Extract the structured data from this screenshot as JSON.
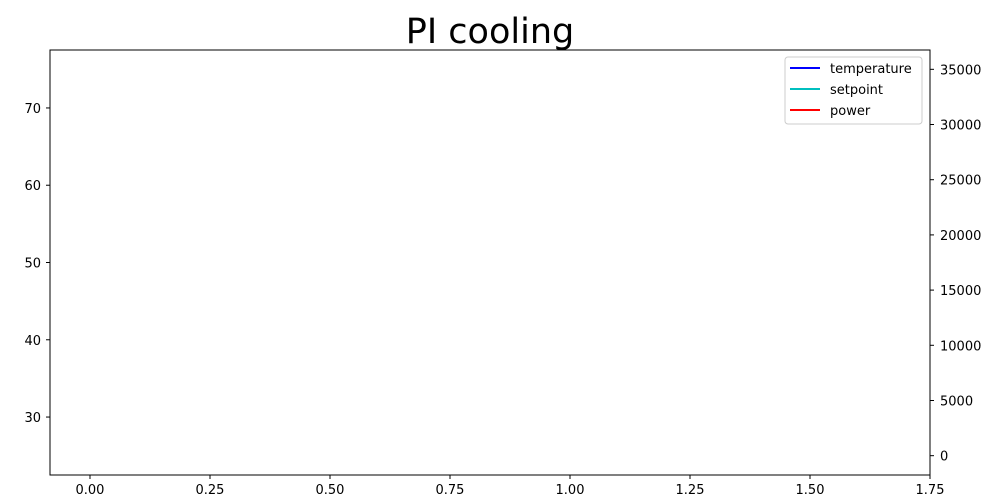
{
  "chart_data": {
    "type": "line",
    "title": "PI cooling",
    "xlabel": "",
    "ylabel": "",
    "y2label": "",
    "xlim": [
      -0.0833,
      1.75
    ],
    "ylim": [
      22.5,
      77.5
    ],
    "y2lim": [
      -1750,
      36750
    ],
    "x_ticks": [
      0.0,
      0.25,
      0.5,
      0.75,
      1.0,
      1.25,
      1.5,
      1.75
    ],
    "x_tick_labels": [
      "0.00",
      "0.25",
      "0.50",
      "0.75",
      "1.00",
      "1.25",
      "1.50",
      "1.75"
    ],
    "y_ticks": [
      30,
      40,
      50,
      60,
      70
    ],
    "y_tick_labels": [
      "30",
      "40",
      "50",
      "60",
      "70"
    ],
    "y2_ticks": [
      0,
      5000,
      10000,
      15000,
      20000,
      25000,
      30000,
      35000
    ],
    "y2_tick_labels": [
      "0",
      "5000",
      "10000",
      "15000",
      "20000",
      "25000",
      "30000",
      "35000"
    ],
    "grid": false,
    "legend_position": "top-right",
    "series": [
      {
        "name": "temperature",
        "color": "#0000ff",
        "axis": "left",
        "x": [],
        "values": []
      },
      {
        "name": "setpoint",
        "color": "#00bfbf",
        "axis": "left",
        "x": [],
        "values": []
      },
      {
        "name": "power",
        "color": "#ff0000",
        "axis": "right",
        "x": [],
        "values": []
      }
    ]
  }
}
